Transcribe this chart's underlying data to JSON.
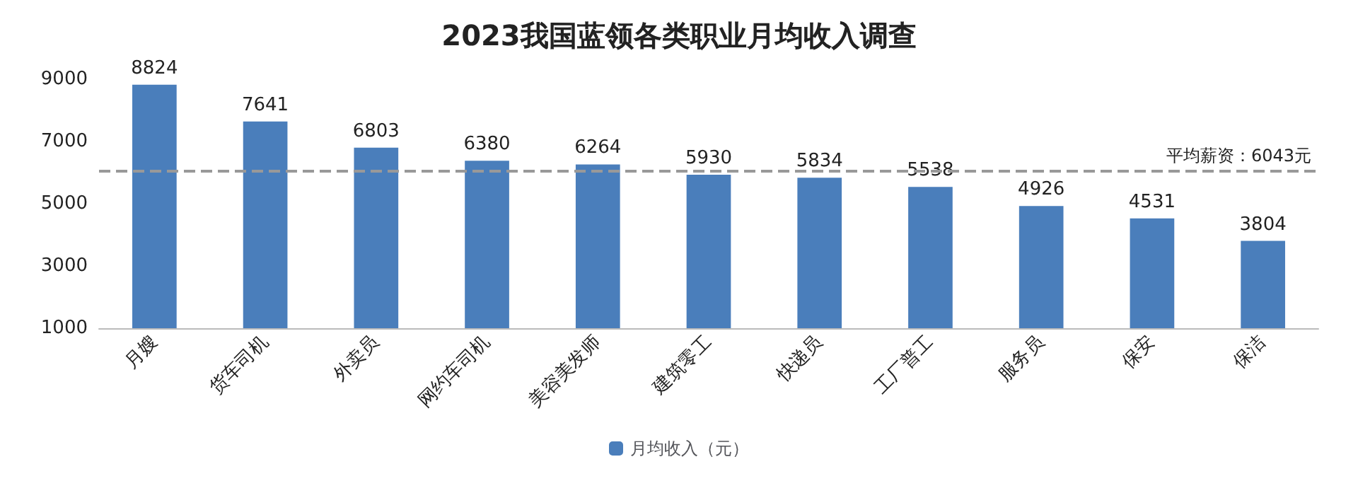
{
  "chart_data": {
    "type": "bar",
    "title": "2023我国蓝领各类职业月均收入调查",
    "categories": [
      "月嫂",
      "货车司机",
      "外卖员",
      "网约车司机",
      "美容美发师",
      "建筑零工",
      "快递员",
      "工厂普工",
      "服务员",
      "保安",
      "保洁"
    ],
    "series": [
      {
        "name": "月均收入（元）",
        "color": "#4a7ebb",
        "values": [
          8824,
          7641,
          6803,
          6380,
          6264,
          5930,
          5834,
          5538,
          4926,
          4531,
          3804
        ]
      }
    ],
    "ylim": [
      1000,
      9000
    ],
    "yticks": [
      1000,
      3000,
      5000,
      7000,
      9000
    ],
    "grid": false,
    "legend": "bottom",
    "data_labels": true,
    "ref_lines": [
      {
        "axis": "y",
        "value": 6043,
        "label": "平均薪资：6043元",
        "color": "#999999",
        "line_style": "dashed"
      }
    ]
  }
}
